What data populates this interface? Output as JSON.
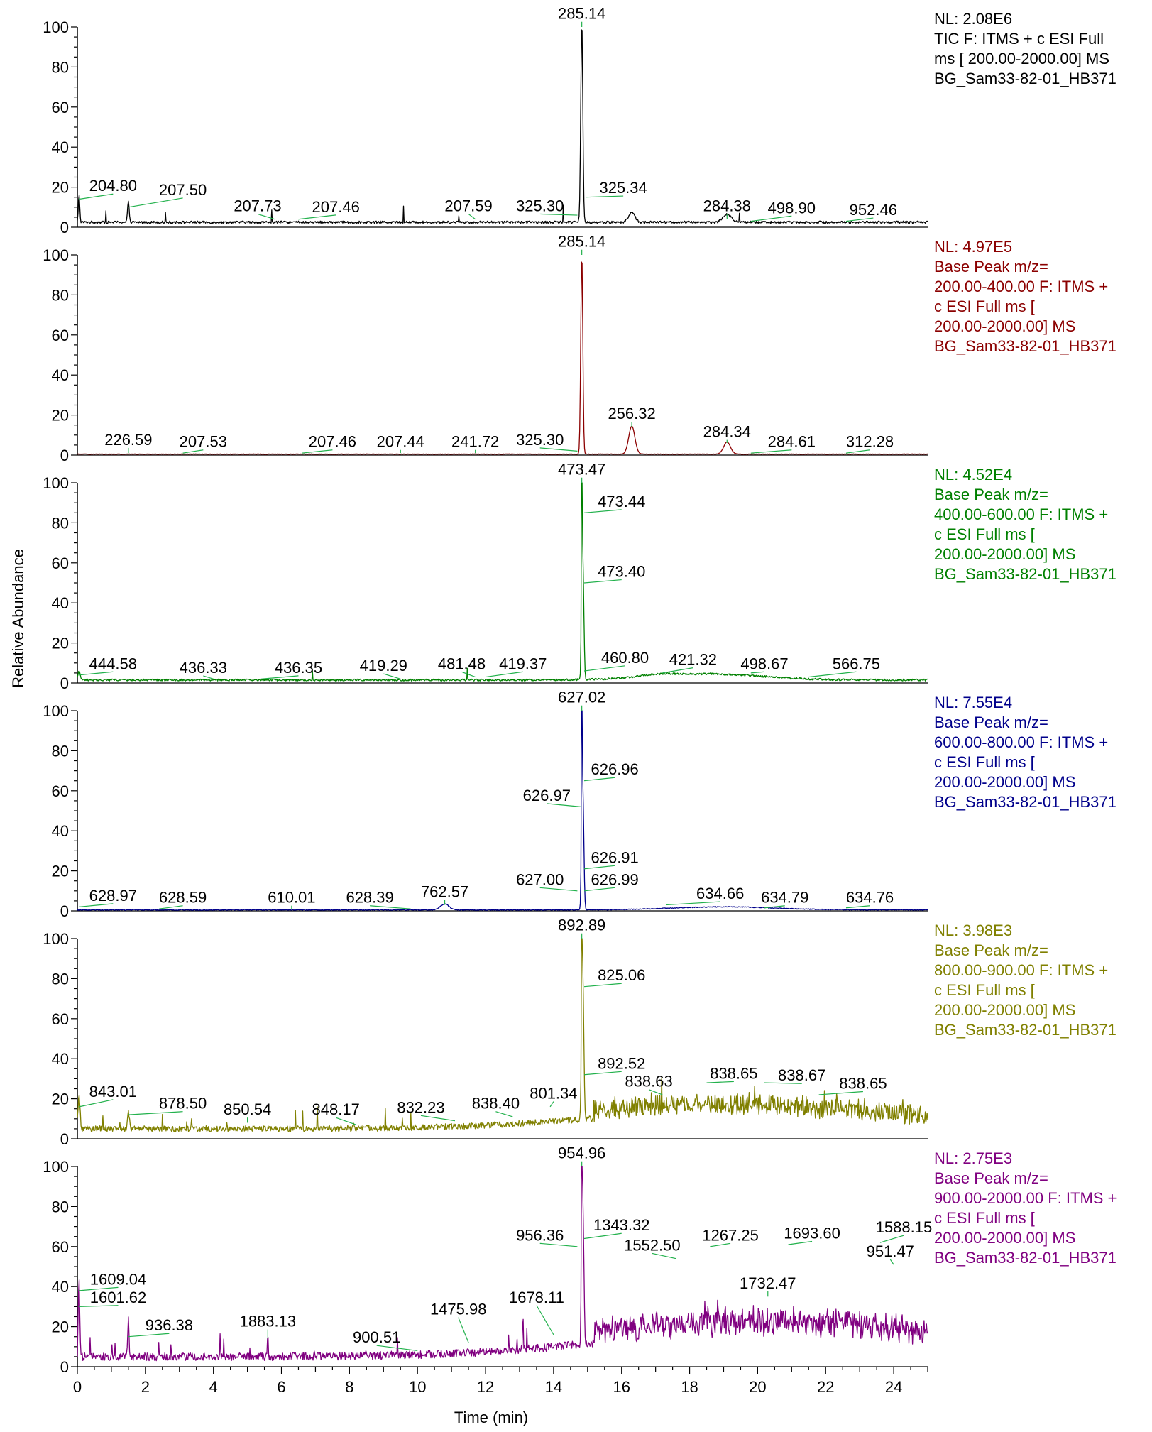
{
  "chart_data": {
    "type": "line",
    "xlabel": "Time (min)",
    "ylabel": "Relative Abundance",
    "xlim": [
      0,
      25
    ],
    "ylim": [
      0,
      100
    ],
    "x_ticks": [
      0,
      2,
      4,
      6,
      8,
      10,
      12,
      14,
      16,
      18,
      20,
      22,
      24
    ],
    "y_ticks": [
      0,
      20,
      40,
      60,
      80,
      100
    ],
    "grid": false,
    "legend": "right",
    "leader_color": "#22b14c",
    "panels": [
      {
        "color": "#000000",
        "info": [
          "NL: 2.08E6",
          "TIC F: ITMS + c ESI Full",
          "ms [ 200.00-2000.00]  MS",
          "BG_Sam33-82-01_HB371"
        ],
        "baseline": 2.5,
        "noise": 0.6,
        "spikes": 0.004,
        "peaks": [
          [
            14.83,
            100,
            0.03
          ],
          [
            16.3,
            5,
            0.09
          ],
          [
            19.1,
            4,
            0.12
          ],
          [
            1.5,
            10,
            0.025
          ],
          [
            0.05,
            14,
            0.02
          ]
        ],
        "labels": [
          {
            "text": "285.14",
            "x": 14.83,
            "y": 100,
            "tx": 14.83,
            "ty": 104
          },
          {
            "text": "204.80",
            "x": 0.05,
            "y": 14,
            "tx": 1.05,
            "ty": 18
          },
          {
            "text": "207.50",
            "x": 1.5,
            "y": 10,
            "tx": 3.1,
            "ty": 16
          },
          {
            "text": "207.73",
            "x": 5.8,
            "y": 4,
            "tx": 5.3,
            "ty": 8
          },
          {
            "text": "207.46",
            "x": 6.5,
            "y": 4,
            "tx": 7.6,
            "ty": 7.5
          },
          {
            "text": "207.59",
            "x": 11.7,
            "y": 4,
            "tx": 11.5,
            "ty": 8
          },
          {
            "text": "325.30",
            "x": 14.7,
            "y": 6,
            "tx": 13.6,
            "ty": 8
          },
          {
            "text": "325.34",
            "x": 14.95,
            "y": 15,
            "tx": 16.05,
            "ty": 17
          },
          {
            "text": "284.38",
            "x": 19.1,
            "y": 4,
            "tx": 19.1,
            "ty": 8
          },
          {
            "text": "498.90",
            "x": 19.8,
            "y": 3,
            "tx": 21.0,
            "ty": 7
          },
          {
            "text": "952.46",
            "x": 22.6,
            "y": 3,
            "tx": 23.4,
            "ty": 6
          }
        ]
      },
      {
        "color": "#8b0000",
        "info": [
          "NL: 4.97E5",
          "Base Peak m/z=",
          "200.00-400.00 F: ITMS +",
          "c ESI Full ms [",
          "200.00-2000.00]  MS",
          "BG_Sam33-82-01_HB371"
        ],
        "baseline": 0.5,
        "noise": 0.1,
        "spikes": 0.0,
        "peaks": [
          [
            14.83,
            100,
            0.03
          ],
          [
            16.3,
            14,
            0.09
          ],
          [
            19.1,
            6,
            0.1
          ]
        ],
        "labels": [
          {
            "text": "285.14",
            "x": 14.83,
            "y": 100,
            "tx": 14.83,
            "ty": 104
          },
          {
            "text": "226.59",
            "x": 1.5,
            "y": 1,
            "tx": 1.5,
            "ty": 5
          },
          {
            "text": "207.53",
            "x": 3.1,
            "y": 1,
            "tx": 3.7,
            "ty": 4
          },
          {
            "text": "207.46",
            "x": 6.6,
            "y": 1,
            "tx": 7.5,
            "ty": 4
          },
          {
            "text": "207.44",
            "x": 9.5,
            "y": 1,
            "tx": 9.5,
            "ty": 4
          },
          {
            "text": "241.72",
            "x": 11.7,
            "y": 1,
            "tx": 11.7,
            "ty": 4
          },
          {
            "text": "325.30",
            "x": 14.7,
            "y": 2,
            "tx": 13.6,
            "ty": 5
          },
          {
            "text": "256.32",
            "x": 16.3,
            "y": 14,
            "tx": 16.3,
            "ty": 18
          },
          {
            "text": "284.34",
            "x": 19.1,
            "y": 6,
            "tx": 19.1,
            "ty": 9
          },
          {
            "text": "284.61",
            "x": 19.8,
            "y": 1,
            "tx": 21.0,
            "ty": 4
          },
          {
            "text": "312.28",
            "x": 22.6,
            "y": 1,
            "tx": 23.3,
            "ty": 4
          }
        ]
      },
      {
        "color": "#008000",
        "info": [
          "NL: 4.52E4",
          "Base Peak m/z=",
          "400.00-600.00 F: ITMS +",
          "c ESI Full ms [",
          "200.00-2000.00]  MS",
          "BG_Sam33-82-01_HB371"
        ],
        "baseline": 1.5,
        "noise": 0.5,
        "spikes": 0.003,
        "peaks": [
          [
            14.83,
            100,
            0.012
          ],
          [
            14.86,
            60,
            0.03
          ],
          [
            0.05,
            5,
            0.03
          ],
          [
            17.0,
            1,
            0.5
          ],
          [
            18.5,
            3,
            1.6
          ]
        ],
        "labels": [
          {
            "text": "473.47",
            "x": 14.83,
            "y": 100,
            "tx": 14.83,
            "ty": 104
          },
          {
            "text": "473.44",
            "x": 14.9,
            "y": 85,
            "tx": 16.0,
            "ty": 88
          },
          {
            "text": "473.40",
            "x": 14.9,
            "y": 50,
            "tx": 16.0,
            "ty": 53
          },
          {
            "text": "444.58",
            "x": 0.05,
            "y": 4,
            "tx": 1.05,
            "ty": 7
          },
          {
            "text": "436.33",
            "x": 4.0,
            "y": 2,
            "tx": 3.7,
            "ty": 5
          },
          {
            "text": "436.35",
            "x": 5.4,
            "y": 2,
            "tx": 6.5,
            "ty": 5
          },
          {
            "text": "419.29",
            "x": 9.5,
            "y": 2,
            "tx": 9.0,
            "ty": 6
          },
          {
            "text": "481.48",
            "x": 11.7,
            "y": 3,
            "tx": 11.3,
            "ty": 7
          },
          {
            "text": "419.37",
            "x": 12.0,
            "y": 3,
            "tx": 13.1,
            "ty": 7
          },
          {
            "text": "460.80",
            "x": 14.9,
            "y": 6,
            "tx": 16.1,
            "ty": 10
          },
          {
            "text": "421.32",
            "x": 17.2,
            "y": 5,
            "tx": 18.1,
            "ty": 9
          },
          {
            "text": "498.67",
            "x": 19.8,
            "y": 5,
            "tx": 20.2,
            "ty": 7
          },
          {
            "text": "566.75",
            "x": 21.5,
            "y": 3,
            "tx": 22.9,
            "ty": 7
          }
        ]
      },
      {
        "color": "#00008b",
        "info": [
          "NL: 7.55E4",
          "Base Peak m/z=",
          "600.00-800.00 F: ITMS +",
          "c ESI Full ms [",
          "200.00-2000.00]  MS",
          "BG_Sam33-82-01_HB371"
        ],
        "baseline": 0.5,
        "noise": 0.2,
        "spikes": 0.0,
        "peaks": [
          [
            14.83,
            100,
            0.012
          ],
          [
            14.86,
            60,
            0.03
          ],
          [
            10.8,
            3,
            0.12
          ],
          [
            19.0,
            1.5,
            1.5
          ]
        ],
        "labels": [
          {
            "text": "627.02",
            "x": 14.83,
            "y": 100,
            "tx": 14.83,
            "ty": 104
          },
          {
            "text": "626.96",
            "x": 14.9,
            "y": 65,
            "tx": 15.8,
            "ty": 68
          },
          {
            "text": "626.97",
            "x": 14.8,
            "y": 52,
            "tx": 13.8,
            "ty": 55
          },
          {
            "text": "626.91",
            "x": 14.9,
            "y": 21,
            "tx": 15.8,
            "ty": 24
          },
          {
            "text": "627.00",
            "x": 14.7,
            "y": 10,
            "tx": 13.6,
            "ty": 13
          },
          {
            "text": "626.99",
            "x": 14.9,
            "y": 10,
            "tx": 15.8,
            "ty": 13
          },
          {
            "text": "628.97",
            "x": 0.05,
            "y": 2,
            "tx": 1.05,
            "ty": 5
          },
          {
            "text": "628.59",
            "x": 2.4,
            "y": 1,
            "tx": 3.1,
            "ty": 4
          },
          {
            "text": "610.01",
            "x": 6.3,
            "y": 1,
            "tx": 6.3,
            "ty": 4
          },
          {
            "text": "628.39",
            "x": 9.8,
            "y": 1,
            "tx": 8.6,
            "ty": 4
          },
          {
            "text": "762.57",
            "x": 10.8,
            "y": 3,
            "tx": 10.8,
            "ty": 7
          },
          {
            "text": "634.66",
            "x": 17.3,
            "y": 3,
            "tx": 18.9,
            "ty": 6
          },
          {
            "text": "634.79",
            "x": 20.2,
            "y": 1.5,
            "tx": 20.8,
            "ty": 4
          },
          {
            "text": "634.76",
            "x": 22.6,
            "y": 1.5,
            "tx": 23.3,
            "ty": 4
          }
        ]
      },
      {
        "color": "#808000",
        "info": [
          "NL: 3.98E3",
          "Base Peak m/z=",
          "800.00-900.00 F: ITMS +",
          "c ESI Full ms [",
          "200.00-2000.00]  MS",
          "BG_Sam33-82-01_HB371"
        ],
        "baseline": 5,
        "noise": 1.5,
        "spikes": 0.02,
        "peaks": [
          [
            14.83,
            100,
            0.012
          ],
          [
            14.86,
            70,
            0.03
          ],
          [
            0.05,
            16,
            0.03
          ],
          [
            1.5,
            8,
            0.03
          ],
          [
            19.0,
            8,
            4.0
          ]
        ],
        "labels": [
          {
            "text": "892.89",
            "x": 14.83,
            "y": 100,
            "tx": 14.83,
            "ty": 104
          },
          {
            "text": "825.06",
            "x": 14.9,
            "y": 76,
            "tx": 16.0,
            "ty": 79
          },
          {
            "text": "843.01",
            "x": 0.05,
            "y": 16,
            "tx": 1.05,
            "ty": 21
          },
          {
            "text": "878.50",
            "x": 1.5,
            "y": 12,
            "tx": 3.1,
            "ty": 15
          },
          {
            "text": "850.54",
            "x": 5.0,
            "y": 8,
            "tx": 5.0,
            "ty": 12
          },
          {
            "text": "848.17",
            "x": 8.2,
            "y": 7,
            "tx": 7.6,
            "ty": 12
          },
          {
            "text": "832.23",
            "x": 11.1,
            "y": 9,
            "tx": 10.1,
            "ty": 13
          },
          {
            "text": "838.40",
            "x": 12.8,
            "y": 11,
            "tx": 12.3,
            "ty": 15
          },
          {
            "text": "801.34",
            "x": 13.9,
            "y": 16,
            "tx": 14.0,
            "ty": 20
          },
          {
            "text": "892.52",
            "x": 14.9,
            "y": 32,
            "tx": 16.0,
            "ty": 35
          },
          {
            "text": "838.63",
            "x": 17.2,
            "y": 22,
            "tx": 16.8,
            "ty": 26
          },
          {
            "text": "838.65",
            "x": 18.5,
            "y": 28,
            "tx": 19.3,
            "ty": 30
          },
          {
            "text": "838.67",
            "x": 20.2,
            "y": 28,
            "tx": 21.3,
            "ty": 29
          },
          {
            "text": "838.65",
            "x": 21.8,
            "y": 22,
            "tx": 23.1,
            "ty": 25
          }
        ]
      },
      {
        "color": "#800080",
        "info": [
          "NL: 2.75E3",
          "Base Peak m/z=",
          "900.00-2000.00 F: ITMS +",
          "c ESI Full ms [",
          "200.00-2000.00]  MS",
          "BG_Sam33-82-01_HB371"
        ],
        "baseline": 5,
        "noise": 2,
        "spikes": 0.03,
        "peaks": [
          [
            14.83,
            100,
            0.012
          ],
          [
            14.86,
            70,
            0.03
          ],
          [
            0.05,
            40,
            0.02
          ],
          [
            1.5,
            20,
            0.02
          ],
          [
            4.2,
            12,
            0.01
          ],
          [
            5.6,
            14,
            0.01
          ],
          [
            13.1,
            20,
            0.01
          ],
          [
            20.0,
            12,
            4.5
          ]
        ],
        "labels": [
          {
            "text": "954.96",
            "x": 14.83,
            "y": 100,
            "tx": 14.83,
            "ty": 104
          },
          {
            "text": "1343.32",
            "x": 14.9,
            "y": 64,
            "tx": 16.0,
            "ty": 68
          },
          {
            "text": "956.36",
            "x": 14.7,
            "y": 60,
            "tx": 13.6,
            "ty": 63
          },
          {
            "text": "1552.50",
            "x": 17.6,
            "y": 54,
            "tx": 16.9,
            "ty": 58
          },
          {
            "text": "1267.25",
            "x": 18.6,
            "y": 60,
            "tx": 19.2,
            "ty": 63
          },
          {
            "text": "1693.60",
            "x": 20.9,
            "y": 61,
            "tx": 21.6,
            "ty": 64
          },
          {
            "text": "1588.15",
            "x": 23.6,
            "y": 62,
            "tx": 24.3,
            "ty": 67
          },
          {
            "text": "951.47",
            "x": 24.0,
            "y": 51,
            "tx": 23.9,
            "ty": 55
          },
          {
            "text": "1732.47",
            "x": 20.3,
            "y": 35,
            "tx": 20.3,
            "ty": 39
          },
          {
            "text": "1609.04",
            "x": 0.05,
            "y": 38,
            "tx": 1.2,
            "ty": 41
          },
          {
            "text": "1601.62",
            "x": 0.05,
            "y": 30,
            "tx": 1.2,
            "ty": 32
          },
          {
            "text": "936.38",
            "x": 1.5,
            "y": 15,
            "tx": 2.7,
            "ty": 18
          },
          {
            "text": "1883.13",
            "x": 5.6,
            "y": 14,
            "tx": 5.6,
            "ty": 20
          },
          {
            "text": "900.51",
            "x": 10.0,
            "y": 8,
            "tx": 8.8,
            "ty": 12
          },
          {
            "text": "1475.98",
            "x": 11.5,
            "y": 12,
            "tx": 11.2,
            "ty": 26
          },
          {
            "text": "1678.11",
            "x": 14.0,
            "y": 16,
            "tx": 13.5,
            "ty": 32
          }
        ]
      }
    ]
  }
}
